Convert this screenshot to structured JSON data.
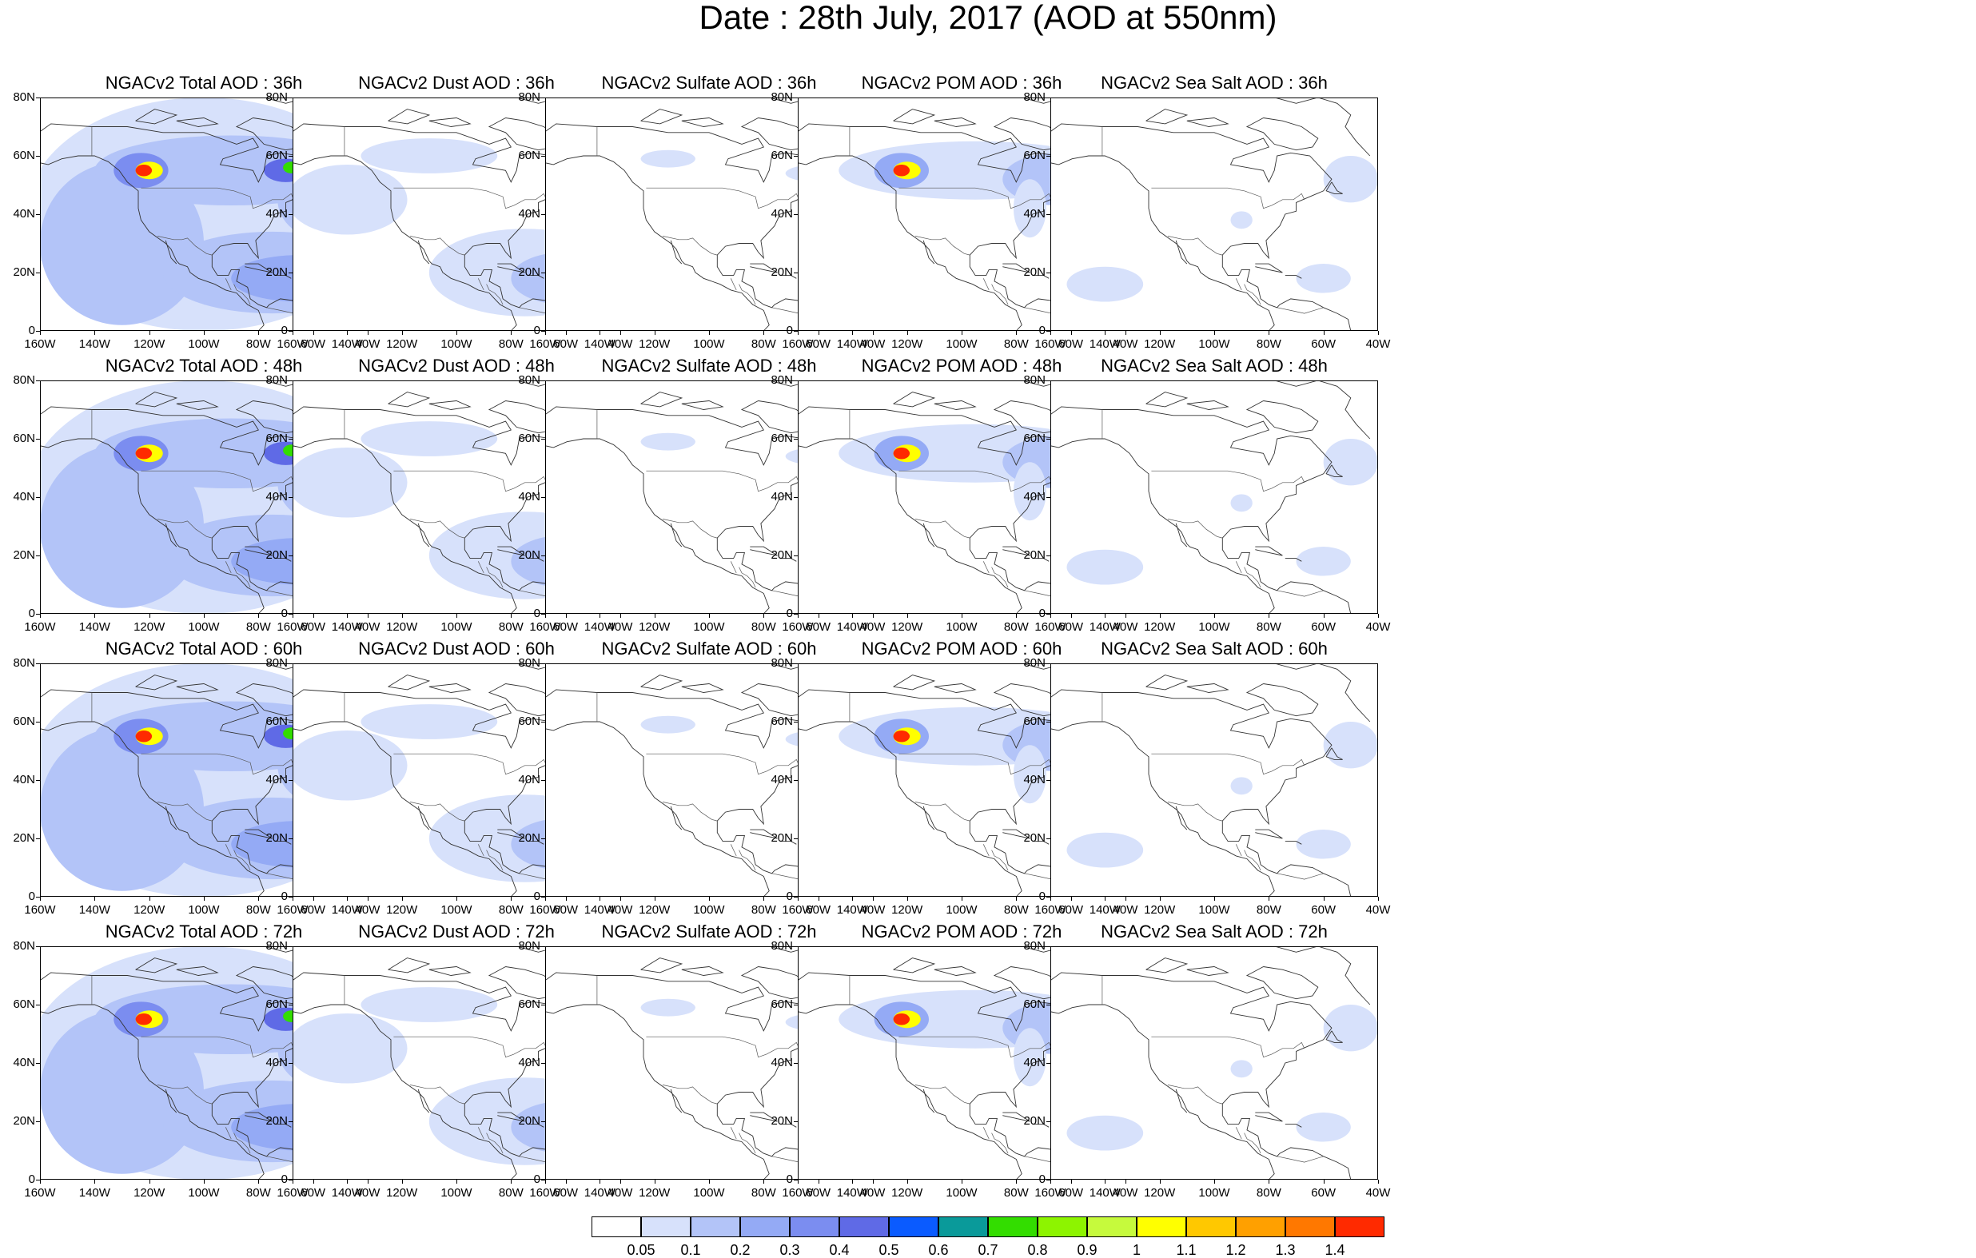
{
  "title": "Date : 28th July, 2017 (AOD at 550nm)",
  "rows": [
    {
      "hour": "36h",
      "panels": [
        {
          "id": "total",
          "title": "NGACv2 Total AOD : 36h"
        },
        {
          "id": "dust",
          "title": "NGACv2 Dust AOD : 36h"
        },
        {
          "id": "sulfate",
          "title": "NGACv2 Sulfate AOD : 36h"
        },
        {
          "id": "pom",
          "title": "NGACv2 POM AOD : 36h"
        },
        {
          "id": "seasalt",
          "title": "NGACv2 Sea Salt AOD : 36h"
        }
      ]
    },
    {
      "hour": "48h",
      "panels": [
        {
          "id": "total",
          "title": "NGACv2 Total AOD : 48h"
        },
        {
          "id": "dust",
          "title": "NGACv2 Dust AOD : 48h"
        },
        {
          "id": "sulfate",
          "title": "NGACv2 Sulfate AOD : 48h"
        },
        {
          "id": "pom",
          "title": "NGACv2 POM AOD : 48h"
        },
        {
          "id": "seasalt",
          "title": "NGACv2 Sea Salt AOD : 48h"
        }
      ]
    },
    {
      "hour": "60h",
      "panels": [
        {
          "id": "total",
          "title": "NGACv2 Total AOD : 60h"
        },
        {
          "id": "dust",
          "title": "NGACv2 Dust AOD : 60h"
        },
        {
          "id": "sulfate",
          "title": "NGACv2 Sulfate AOD : 60h"
        },
        {
          "id": "pom",
          "title": "NGACv2 POM AOD : 60h"
        },
        {
          "id": "seasalt",
          "title": "NGACv2 Sea Salt AOD : 60h"
        }
      ]
    },
    {
      "hour": "72h",
      "panels": [
        {
          "id": "total",
          "title": "NGACv2 Total AOD : 72h"
        },
        {
          "id": "dust",
          "title": "NGACv2 Dust AOD : 72h"
        },
        {
          "id": "sulfate",
          "title": "NGACv2 Sulfate AOD : 72h"
        },
        {
          "id": "pom",
          "title": "NGACv2 POM AOD : 72h"
        },
        {
          "id": "seasalt",
          "title": "NGACv2 Sea Salt  AOD : 72h"
        }
      ]
    }
  ],
  "axes": {
    "lat_ticks": [
      "80N",
      "60N",
      "40N",
      "20N",
      "0"
    ],
    "lon_ticks": [
      "160W",
      "140W",
      "120W",
      "100W",
      "80W",
      "60W",
      "40W"
    ]
  },
  "colorbar": {
    "labels": [
      "0.05",
      "0.1",
      "0.2",
      "0.3",
      "0.4",
      "0.5",
      "0.6",
      "0.7",
      "0.8",
      "0.9",
      "1",
      "1.1",
      "1.2",
      "1.3",
      "1.4"
    ],
    "colors": [
      "#ffffff",
      "#d7e1fb",
      "#b3c4f8",
      "#94aaf5",
      "#7b8df0",
      "#5f6ae6",
      "#0a5bff",
      "#0a9a9a",
      "#33dd00",
      "#8df400",
      "#c6fa3c",
      "#ffff00",
      "#ffc800",
      "#ffa000",
      "#ff7800",
      "#ff2a00"
    ]
  }
}
